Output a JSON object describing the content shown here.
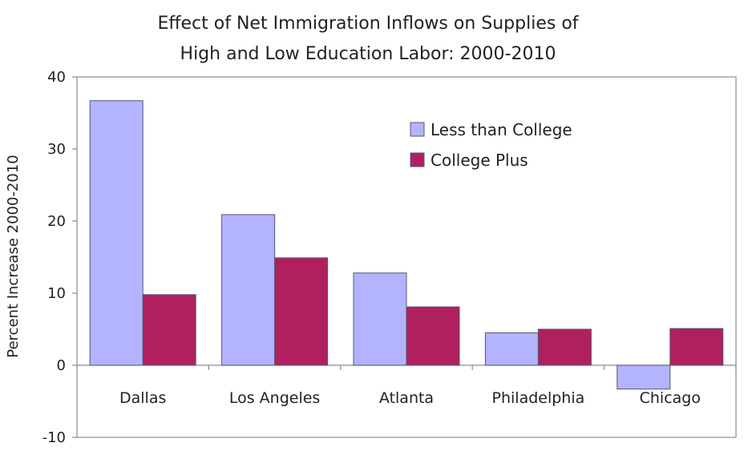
{
  "chart_data": {
    "type": "bar",
    "title_lines": [
      "Effect of Net Immigration Inflows on Supplies of",
      "High and Low Education Labor: 2000-2010"
    ],
    "xlabel": "",
    "ylabel": "Percent Increase 2000-2010",
    "ylim": [
      -10,
      40
    ],
    "yticks": [
      -10,
      0,
      10,
      20,
      30,
      40
    ],
    "categories": [
      "Dallas",
      "Los Angeles",
      "Atlanta",
      "Philadelphia",
      "Chicago"
    ],
    "series": [
      {
        "name": "Less than College",
        "color": "#b3b3ff",
        "values": [
          36.7,
          20.9,
          12.8,
          4.5,
          -3.3
        ]
      },
      {
        "name": "College Plus",
        "color": "#b0205f",
        "values": [
          9.8,
          14.9,
          8.1,
          5.0,
          5.1
        ]
      }
    ],
    "legend_position": "top-right",
    "grid": false
  }
}
